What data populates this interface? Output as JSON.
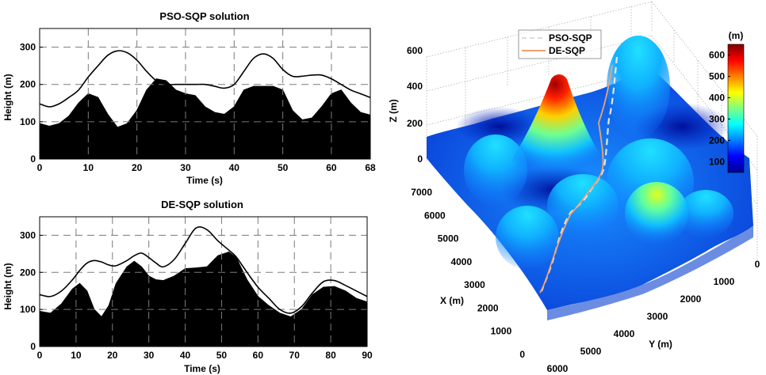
{
  "chart_data": [
    {
      "type": "area",
      "title": "PSO-SQP solution",
      "xlabel": "Time (s)",
      "ylabel": "Height (m)",
      "xlim": [
        0,
        68
      ],
      "ylim": [
        0,
        350
      ],
      "xticks": [
        "0",
        "10",
        "20",
        "30",
        "40",
        "50",
        "60",
        "68"
      ],
      "yticks": [
        "0",
        "100",
        "200",
        "300"
      ],
      "grid": true,
      "series": [
        {
          "role": "terrain",
          "kind": "filled",
          "x": [
            0,
            2,
            4,
            6,
            8,
            10,
            12,
            14,
            16,
            18,
            20,
            22,
            24,
            26,
            28,
            30,
            32,
            34,
            36,
            38,
            40,
            42,
            44,
            46,
            48,
            50,
            52,
            54,
            56,
            58,
            60,
            62,
            64,
            66,
            68
          ],
          "y": [
            95,
            88,
            95,
            115,
            150,
            175,
            165,
            120,
            85,
            95,
            130,
            185,
            215,
            210,
            185,
            175,
            170,
            140,
            125,
            120,
            140,
            185,
            195,
            195,
            195,
            185,
            130,
            105,
            110,
            140,
            175,
            185,
            150,
            125,
            118
          ]
        },
        {
          "role": "path",
          "kind": "line",
          "x": [
            0,
            2,
            4,
            6,
            8,
            10,
            12,
            14,
            16,
            18,
            20,
            22,
            24,
            26,
            28,
            30,
            32,
            34,
            36,
            38,
            40,
            42,
            44,
            46,
            48,
            50,
            52,
            54,
            56,
            58,
            60,
            62,
            64,
            66,
            68
          ],
          "y": [
            148,
            140,
            148,
            165,
            185,
            220,
            250,
            278,
            290,
            285,
            265,
            235,
            210,
            200,
            200,
            200,
            200,
            200,
            195,
            190,
            200,
            235,
            270,
            282,
            270,
            240,
            222,
            222,
            225,
            225,
            215,
            200,
            185,
            175,
            165
          ]
        }
      ]
    },
    {
      "type": "area",
      "title": "DE-SQP solution",
      "xlabel": "Time (s)",
      "ylabel": "Height (m)",
      "xlim": [
        0,
        90
      ],
      "ylim": [
        0,
        350
      ],
      "xticks": [
        "0",
        "10",
        "20",
        "30",
        "40",
        "50",
        "60",
        "70",
        "80",
        "90"
      ],
      "yticks": [
        "0",
        "100",
        "200",
        "300"
      ],
      "grid": true,
      "series": [
        {
          "role": "terrain",
          "kind": "filled",
          "x": [
            0,
            3,
            6,
            9,
            11,
            13,
            15,
            17,
            19,
            21,
            24,
            26,
            28,
            30,
            32,
            34,
            37,
            40,
            43,
            46,
            49,
            52,
            54,
            57,
            60,
            63,
            66,
            69,
            72,
            75,
            78,
            81,
            84,
            87,
            90
          ],
          "y": [
            95,
            90,
            115,
            155,
            170,
            150,
            100,
            80,
            110,
            170,
            215,
            230,
            215,
            190,
            180,
            178,
            190,
            210,
            212,
            215,
            245,
            255,
            240,
            180,
            135,
            110,
            90,
            80,
            100,
            140,
            160,
            162,
            150,
            130,
            120
          ]
        },
        {
          "role": "path",
          "kind": "line",
          "x": [
            0,
            3,
            6,
            9,
            11,
            13,
            15,
            17,
            19,
            21,
            24,
            26,
            28,
            30,
            32,
            34,
            37,
            40,
            43,
            46,
            49,
            52,
            54,
            57,
            60,
            63,
            66,
            69,
            72,
            75,
            78,
            81,
            84,
            87,
            90
          ],
          "y": [
            140,
            135,
            150,
            180,
            205,
            225,
            232,
            228,
            220,
            218,
            232,
            245,
            252,
            240,
            225,
            215,
            235,
            278,
            320,
            315,
            285,
            260,
            242,
            200,
            160,
            130,
            100,
            90,
            108,
            145,
            175,
            178,
            165,
            150,
            135
          ]
        }
      ]
    },
    {
      "type": "surface3d",
      "xlabel": "X (m)",
      "ylabel": "Y (m)",
      "zlabel": "Z (m)",
      "xticks": [
        "0",
        "1000",
        "2000",
        "3000",
        "4000",
        "5000",
        "6000",
        "7000"
      ],
      "yticks": [
        "6000",
        "5000",
        "4000",
        "3000",
        "2000",
        "1000",
        "0"
      ],
      "zticks": [
        "0",
        "200",
        "400",
        "600"
      ],
      "colorbar": {
        "title": "(m)",
        "ticks": [
          "100",
          "200",
          "300",
          "400",
          "500",
          "600"
        ],
        "range": [
          50,
          650
        ],
        "colormap": "jet"
      },
      "legend": {
        "placement": "top-left",
        "entries": [
          {
            "name": "PSO-SQP",
            "color": "#dddddd",
            "style": "dashed"
          },
          {
            "name": "DE-SQP",
            "color": "#f0a070",
            "style": "solid"
          }
        ]
      },
      "grid": true
    }
  ]
}
